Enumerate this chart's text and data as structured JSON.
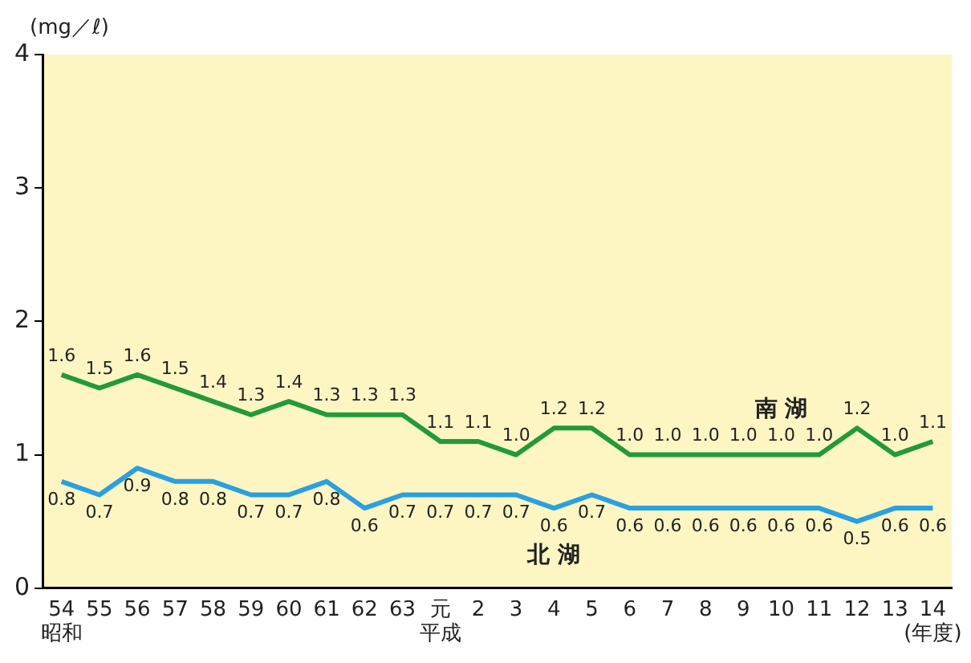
{
  "chart_data": {
    "type": "line",
    "ylabel": "(mg／ℓ)",
    "xlabel": "(年度)",
    "categories": [
      "54",
      "55",
      "56",
      "57",
      "58",
      "59",
      "60",
      "61",
      "62",
      "63",
      "元",
      "2",
      "3",
      "4",
      "5",
      "6",
      "7",
      "8",
      "9",
      "10",
      "11",
      "12",
      "13",
      "14"
    ],
    "series": [
      {
        "name": "南 湖",
        "color": "#229a3a",
        "values": [
          1.6,
          1.5,
          1.6,
          1.5,
          1.4,
          1.3,
          1.4,
          1.3,
          1.3,
          1.3,
          1.1,
          1.1,
          1.0,
          1.2,
          1.2,
          1.0,
          1.0,
          1.0,
          1.0,
          1.0,
          1.0,
          1.2,
          1.0,
          1.1
        ],
        "value_labels": [
          "1.6",
          "1.5",
          "1.6",
          "1.5",
          "1.4",
          "1.3",
          "1.4",
          "1.3",
          "1.3",
          "1.3",
          "1.1",
          "1.1",
          "1.0",
          "1.2",
          "1.2",
          "1.0",
          "1.0",
          "1.0",
          "1.0",
          "1.0",
          "1.0",
          "1.2",
          "1.0",
          "1.1"
        ]
      },
      {
        "name": "北 湖",
        "color": "#2aa0e0",
        "values": [
          0.8,
          0.7,
          0.9,
          0.8,
          0.8,
          0.7,
          0.7,
          0.8,
          0.6,
          0.7,
          0.7,
          0.7,
          0.7,
          0.6,
          0.7,
          0.6,
          0.6,
          0.6,
          0.6,
          0.6,
          0.6,
          0.5,
          0.6,
          0.6
        ],
        "value_labels": [
          "0.8",
          "0.7",
          "0.9",
          "0.8",
          "0.8",
          "0.7",
          "0.7",
          "0.8",
          "0.6",
          "0.7",
          "0.7",
          "0.7",
          "0.7",
          "0.6",
          "0.7",
          "0.6",
          "0.6",
          "0.6",
          "0.6",
          "0.6",
          "0.6",
          "0.5",
          "0.6",
          "0.6"
        ]
      }
    ],
    "annotations": [
      "昭和",
      "平成"
    ],
    "ylim": [
      0,
      4
    ],
    "yticks": [
      0,
      1,
      2,
      3,
      4
    ],
    "grid": false,
    "legend": false,
    "marker": "none",
    "line_style": "solid"
  }
}
